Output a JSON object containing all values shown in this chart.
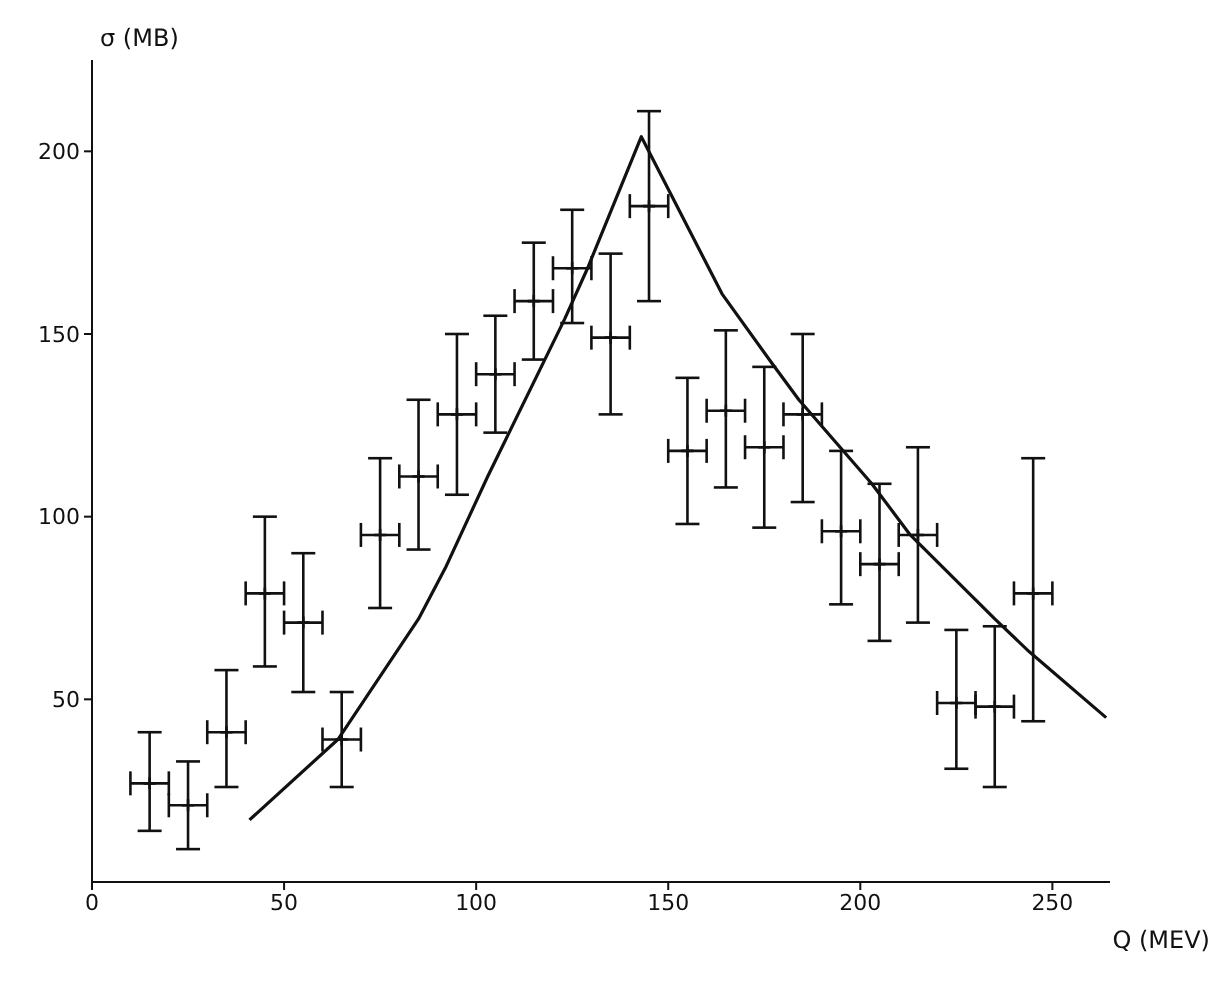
{
  "chart_data": {
    "type": "scatter",
    "xlabel": "Q (MEV)",
    "ylabel": "σ (MB)",
    "xlim": [
      0,
      265
    ],
    "ylim": [
      0,
      225
    ],
    "xticks": [
      0,
      50,
      100,
      150,
      200,
      250
    ],
    "yticks": [
      50,
      100,
      150,
      200
    ],
    "grid": false,
    "legend": false,
    "series": [
      {
        "color": "#111111",
        "marker": "cross",
        "x": [
          15,
          25,
          35,
          45,
          55,
          65,
          75,
          85,
          95,
          105,
          115,
          125,
          135,
          145,
          155,
          165,
          175,
          185,
          195,
          205,
          215,
          225,
          235,
          245
        ],
        "values": [
          27,
          21,
          41,
          79,
          71,
          39,
          95,
          111,
          128,
          139,
          159,
          168,
          149,
          185,
          118,
          129,
          119,
          128,
          96,
          87,
          95,
          49,
          48,
          79
        ],
        "errors": [
          [
            14,
            41
          ],
          [
            9,
            33
          ],
          [
            26,
            58
          ],
          [
            59,
            100
          ],
          [
            52,
            90
          ],
          [
            26,
            52
          ],
          [
            75,
            116
          ],
          [
            91,
            132
          ],
          [
            106,
            150
          ],
          [
            123,
            155
          ],
          [
            143,
            175
          ],
          [
            153,
            184
          ],
          [
            128,
            172
          ],
          [
            159,
            211
          ],
          [
            98,
            138
          ],
          [
            108,
            151
          ],
          [
            97,
            141
          ],
          [
            104,
            150
          ],
          [
            76,
            118
          ],
          [
            66,
            109
          ],
          [
            71,
            119
          ],
          [
            31,
            69
          ],
          [
            26,
            70
          ],
          [
            44,
            116
          ]
        ],
        "xerrors": [
          5,
          5,
          5,
          5,
          5,
          5,
          5,
          5,
          5,
          5,
          5,
          5,
          5,
          5,
          5,
          5,
          5,
          5,
          5,
          5,
          5,
          5,
          5,
          5
        ]
      },
      {
        "type": "line",
        "color": "#111111",
        "line_style": "solid",
        "marker": "none",
        "x": [
          41,
          64,
          85,
          92,
          103,
          123,
          129,
          143,
          164,
          177,
          184,
          203,
          213,
          235,
          244,
          264
        ],
        "values": [
          17,
          39,
          72,
          86,
          111,
          154,
          168,
          204,
          161,
          142,
          132,
          109,
          95,
          72,
          63,
          45
        ]
      }
    ]
  }
}
